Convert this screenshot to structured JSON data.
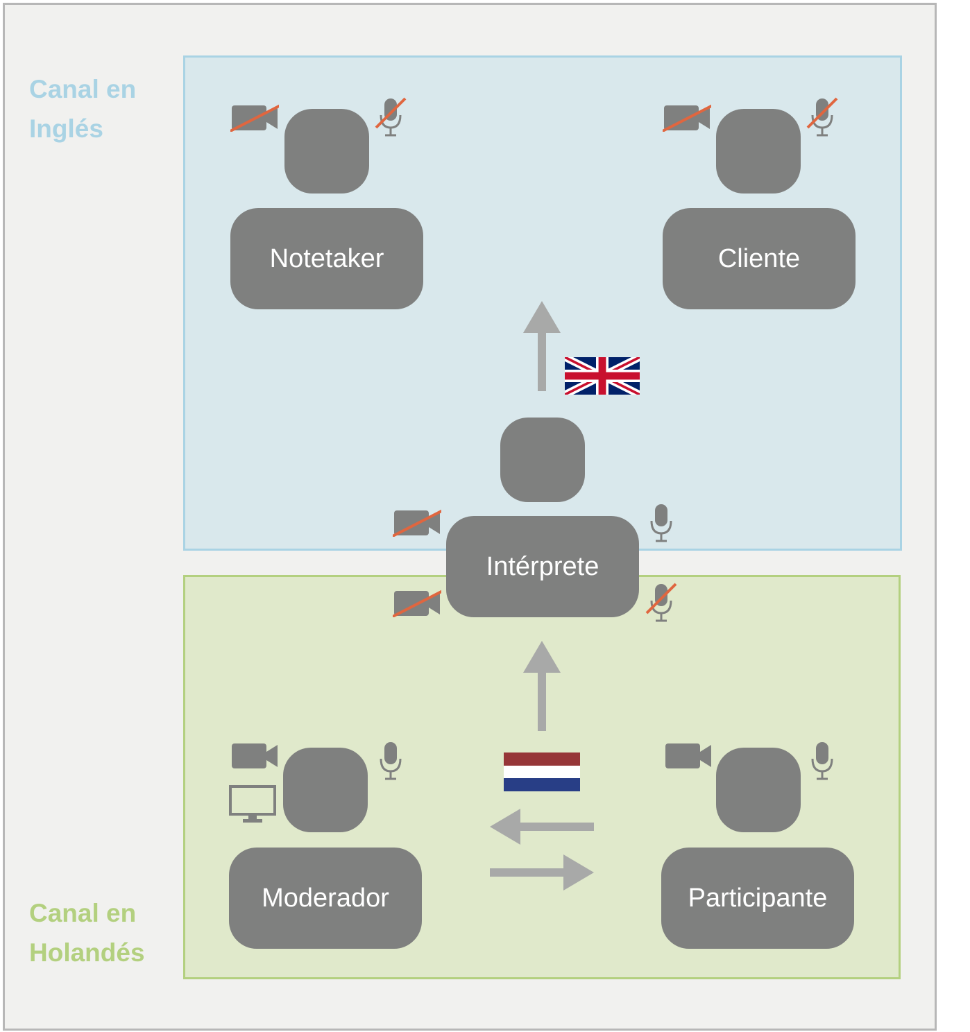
{
  "channels": {
    "english": {
      "label_line1": "Canal en",
      "label_line2": "Inglés",
      "color": "#a9d3e4"
    },
    "dutch": {
      "label_line1": "Canal en",
      "label_line2": "Holandés",
      "color": "#b3d07f"
    }
  },
  "people": {
    "notetaker": {
      "label": "Notetaker",
      "camera": "off",
      "mic": "off"
    },
    "cliente": {
      "label": "Cliente",
      "camera": "off",
      "mic": "off"
    },
    "interprete": {
      "label": "Intérprete",
      "camera_en": "off",
      "mic_en": "on",
      "camera_nl": "off",
      "mic_nl": "off"
    },
    "moderador": {
      "label": "Moderador",
      "camera": "on",
      "mic": "on",
      "screen_share": "on"
    },
    "participante": {
      "label": "Participante",
      "camera": "on",
      "mic": "on"
    }
  },
  "flags": {
    "english": "uk-flag-icon",
    "dutch": "netherlands-flag-icon"
  },
  "colors": {
    "person": "#7f807f",
    "arrow": "#a8a9a8",
    "strike": "#e0663f",
    "icon": "#7f807f"
  }
}
